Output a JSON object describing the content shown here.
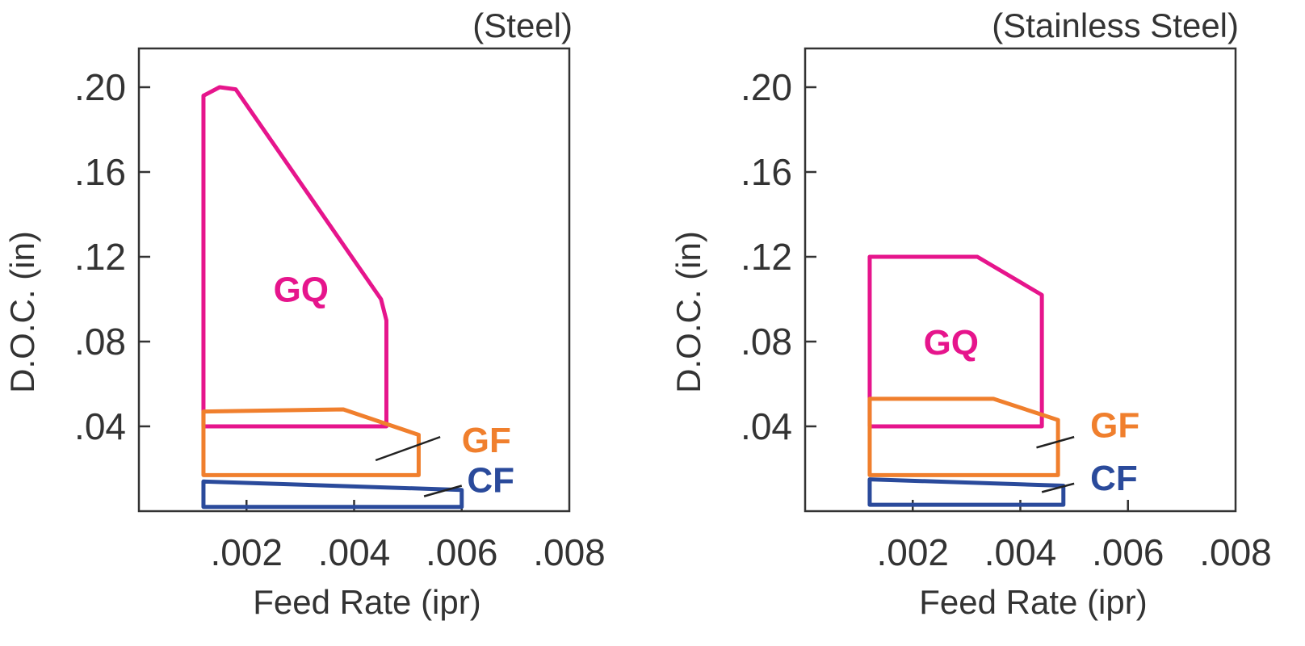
{
  "chart_data": [
    {
      "type": "area",
      "title": "(Steel)",
      "xlabel": "Feed Rate (ipr)",
      "ylabel": "D.O.C. (in)",
      "xlim": [
        0,
        0.008
      ],
      "ylim": [
        0,
        0.22
      ],
      "xticks": [
        0.002,
        0.004,
        0.006,
        0.008
      ],
      "xtick_labels": [
        ".002",
        ".004",
        ".006",
        ".008"
      ],
      "yticks": [
        0.04,
        0.08,
        0.12,
        0.16,
        0.2
      ],
      "ytick_labels": [
        ".04",
        ".08",
        ".12",
        ".16",
        ".20"
      ],
      "grid": false,
      "regions": [
        {
          "name": "GQ",
          "color": "#e6158c",
          "points": [
            [
              0.0012,
              0.04
            ],
            [
              0.0012,
              0.196
            ],
            [
              0.0015,
              0.2
            ],
            [
              0.0018,
              0.199
            ],
            [
              0.0045,
              0.1
            ],
            [
              0.0046,
              0.09
            ],
            [
              0.0046,
              0.04
            ]
          ],
          "label_pos": [
            0.0025,
            0.105
          ]
        },
        {
          "name": "GF",
          "color": "#f07f2d",
          "points": [
            [
              0.0012,
              0.017
            ],
            [
              0.0012,
              0.047
            ],
            [
              0.0038,
              0.048
            ],
            [
              0.0052,
              0.036
            ],
            [
              0.0052,
              0.017
            ]
          ],
          "label_pos": [
            0.006,
            0.034
          ],
          "leader": [
            [
              0.0044,
              0.024
            ],
            [
              0.0056,
              0.035
            ]
          ]
        },
        {
          "name": "CF",
          "color": "#2a4a9b",
          "points": [
            [
              0.0012,
              0.002
            ],
            [
              0.0012,
              0.014
            ],
            [
              0.006,
              0.01
            ],
            [
              0.006,
              0.002
            ]
          ],
          "label_pos": [
            0.0061,
            0.015
          ],
          "leader": [
            [
              0.0053,
              0.007
            ],
            [
              0.006,
              0.012
            ]
          ]
        }
      ]
    },
    {
      "type": "area",
      "title": "(Stainless Steel)",
      "xlabel": "Feed Rate (ipr)",
      "ylabel": "D.O.C. (in)",
      "xlim": [
        0,
        0.008
      ],
      "ylim": [
        0,
        0.22
      ],
      "xticks": [
        0.002,
        0.004,
        0.006,
        0.008
      ],
      "xtick_labels": [
        ".002",
        ".004",
        ".006",
        ".008"
      ],
      "yticks": [
        0.04,
        0.08,
        0.12,
        0.16,
        0.2
      ],
      "ytick_labels": [
        ".04",
        ".08",
        ".12",
        ".16",
        ".20"
      ],
      "grid": false,
      "regions": [
        {
          "name": "GQ",
          "color": "#e6158c",
          "points": [
            [
              0.0012,
              0.04
            ],
            [
              0.0012,
              0.12
            ],
            [
              0.0032,
              0.12
            ],
            [
              0.0044,
              0.102
            ],
            [
              0.0044,
              0.04
            ]
          ],
          "label_pos": [
            0.0022,
            0.08
          ]
        },
        {
          "name": "GF",
          "color": "#f07f2d",
          "points": [
            [
              0.0012,
              0.017
            ],
            [
              0.0012,
              0.053
            ],
            [
              0.0035,
              0.053
            ],
            [
              0.0047,
              0.043
            ],
            [
              0.0047,
              0.017
            ]
          ],
          "label_pos": [
            0.0053,
            0.041
          ],
          "leader": [
            [
              0.0043,
              0.03
            ],
            [
              0.005,
              0.035
            ]
          ]
        },
        {
          "name": "CF",
          "color": "#2a4a9b",
          "points": [
            [
              0.0012,
              0.003
            ],
            [
              0.0012,
              0.015
            ],
            [
              0.0048,
              0.012
            ],
            [
              0.0048,
              0.003
            ]
          ],
          "label_pos": [
            0.0053,
            0.016
          ],
          "leader": [
            [
              0.0044,
              0.009
            ],
            [
              0.005,
              0.013
            ]
          ]
        }
      ]
    }
  ]
}
